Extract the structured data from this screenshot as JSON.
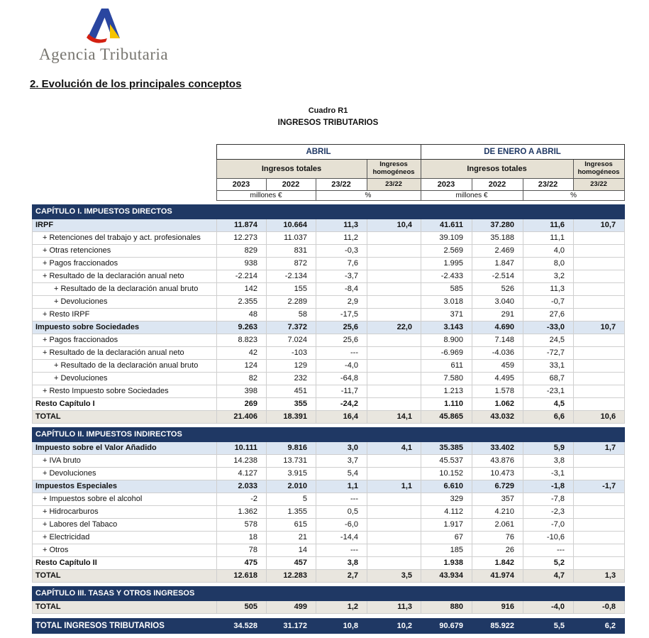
{
  "logo": {
    "text": "Agencia Tributaria"
  },
  "page_title": "2. Evolución de los principales conceptos",
  "table": {
    "title1": "Cuadro R1",
    "title2": "INGRESOS TRIBUTARIOS",
    "header": {
      "april": "ABRIL",
      "enero_abril": "DE ENERO A ABRIL",
      "ingresos_totales": "Ingresos totales",
      "ingresos_homogeneos": "Ingresos homogéneos",
      "y2023": "2023",
      "y2022": "2022",
      "ratio": "23/22",
      "unit_millones": "millones €",
      "unit_pct": "%"
    },
    "sections": [
      {
        "header": "CAPÍTULO I. IMPUESTOS DIRECTOS",
        "rows": [
          {
            "label": "IRPF",
            "style": "sub",
            "values": [
              "11.874",
              "10.664",
              "11,3",
              "10,4",
              "41.611",
              "37.280",
              "11,6",
              "10,7"
            ]
          },
          {
            "label": "+ Retenciones del trabajo y act. profesionales",
            "style": "d1",
            "values": [
              "12.273",
              "11.037",
              "11,2",
              "",
              "39.109",
              "35.188",
              "11,1",
              ""
            ]
          },
          {
            "label": "+ Otras retenciones",
            "style": "d1",
            "values": [
              "829",
              "831",
              "-0,3",
              "",
              "2.569",
              "2.469",
              "4,0",
              ""
            ]
          },
          {
            "label": "+ Pagos fraccionados",
            "style": "d1",
            "values": [
              "938",
              "872",
              "7,6",
              "",
              "1.995",
              "1.847",
              "8,0",
              ""
            ]
          },
          {
            "label": "+ Resultado de la declaración anual neto",
            "style": "d1",
            "values": [
              "-2.214",
              "-2.134",
              "-3,7",
              "",
              "-2.433",
              "-2.514",
              "3,2",
              ""
            ]
          },
          {
            "label": "+ Resultado de la declaración anual bruto",
            "style": "d2",
            "values": [
              "142",
              "155",
              "-8,4",
              "",
              "585",
              "526",
              "11,3",
              ""
            ]
          },
          {
            "label": "+ Devoluciones",
            "style": "d2",
            "values": [
              "2.355",
              "2.289",
              "2,9",
              "",
              "3.018",
              "3.040",
              "-0,7",
              ""
            ]
          },
          {
            "label": "+ Resto IRPF",
            "style": "d1",
            "values": [
              "48",
              "58",
              "-17,5",
              "",
              "371",
              "291",
              "27,6",
              ""
            ]
          },
          {
            "label": "Impuesto sobre Sociedades",
            "style": "sub",
            "values": [
              "9.263",
              "7.372",
              "25,6",
              "22,0",
              "3.143",
              "4.690",
              "-33,0",
              "10,7"
            ]
          },
          {
            "label": "+ Pagos fraccionados",
            "style": "d1",
            "values": [
              "8.823",
              "7.024",
              "25,6",
              "",
              "8.900",
              "7.148",
              "24,5",
              ""
            ]
          },
          {
            "label": "+ Resultado de la declaración anual neto",
            "style": "d1",
            "values": [
              "42",
              "-103",
              "---",
              "",
              "-6.969",
              "-4.036",
              "-72,7",
              ""
            ]
          },
          {
            "label": "+ Resultado de la declaración anual bruto",
            "style": "d2",
            "values": [
              "124",
              "129",
              "-4,0",
              "",
              "611",
              "459",
              "33,1",
              ""
            ]
          },
          {
            "label": "+ Devoluciones",
            "style": "d2",
            "values": [
              "82",
              "232",
              "-64,8",
              "",
              "7.580",
              "4.495",
              "68,7",
              ""
            ]
          },
          {
            "label": "+ Resto Impuesto sobre Sociedades",
            "style": "d1",
            "values": [
              "398",
              "451",
              "-11,7",
              "",
              "1.213",
              "1.578",
              "-23,1",
              ""
            ]
          },
          {
            "label": "Resto Capítulo I",
            "style": "b",
            "values": [
              "269",
              "355",
              "-24,2",
              "",
              "1.110",
              "1.062",
              "4,5",
              ""
            ]
          },
          {
            "label": "TOTAL",
            "style": "total",
            "values": [
              "21.406",
              "18.391",
              "16,4",
              "14,1",
              "45.865",
              "43.032",
              "6,6",
              "10,6"
            ]
          }
        ]
      },
      {
        "header": "CAPÍTULO II. IMPUESTOS INDIRECTOS",
        "rows": [
          {
            "label": "Impuesto sobre el Valor Añadido",
            "style": "sub",
            "values": [
              "10.111",
              "9.816",
              "3,0",
              "4,1",
              "35.385",
              "33.402",
              "5,9",
              "1,7"
            ]
          },
          {
            "label": "+ IVA bruto",
            "style": "d1",
            "values": [
              "14.238",
              "13.731",
              "3,7",
              "",
              "45.537",
              "43.876",
              "3,8",
              ""
            ]
          },
          {
            "label": "+ Devoluciones",
            "style": "d1",
            "values": [
              "4.127",
              "3.915",
              "5,4",
              "",
              "10.152",
              "10.473",
              "-3,1",
              ""
            ]
          },
          {
            "label": "Impuestos Especiales",
            "style": "sub",
            "values": [
              "2.033",
              "2.010",
              "1,1",
              "1,1",
              "6.610",
              "6.729",
              "-1,8",
              "-1,7"
            ]
          },
          {
            "label": "+ Impuestos sobre el alcohol",
            "style": "d1",
            "values": [
              "-2",
              "5",
              "---",
              "",
              "329",
              "357",
              "-7,8",
              ""
            ]
          },
          {
            "label": "+ Hidrocarburos",
            "style": "d1",
            "values": [
              "1.362",
              "1.355",
              "0,5",
              "",
              "4.112",
              "4.210",
              "-2,3",
              ""
            ]
          },
          {
            "label": "+ Labores del Tabaco",
            "style": "d1",
            "values": [
              "578",
              "615",
              "-6,0",
              "",
              "1.917",
              "2.061",
              "-7,0",
              ""
            ]
          },
          {
            "label": "+ Electricidad",
            "style": "d1",
            "values": [
              "18",
              "21",
              "-14,4",
              "",
              "67",
              "76",
              "-10,6",
              ""
            ]
          },
          {
            "label": "+ Otros",
            "style": "d1",
            "values": [
              "78",
              "14",
              "---",
              "",
              "185",
              "26",
              "---",
              ""
            ]
          },
          {
            "label": "Resto Capítulo II",
            "style": "b",
            "values": [
              "475",
              "457",
              "3,8",
              "",
              "1.938",
              "1.842",
              "5,2",
              ""
            ]
          },
          {
            "label": "TOTAL",
            "style": "total",
            "values": [
              "12.618",
              "12.283",
              "2,7",
              "3,5",
              "43.934",
              "41.974",
              "4,7",
              "1,3"
            ]
          }
        ]
      },
      {
        "header": "CAPÍTULO III. TASAS Y OTROS INGRESOS",
        "rows": [
          {
            "label": "TOTAL",
            "style": "total",
            "values": [
              "505",
              "499",
              "1,2",
              "11,3",
              "880",
              "916",
              "-4,0",
              "-0,8"
            ]
          }
        ]
      }
    ],
    "grand_total": {
      "label": "TOTAL INGRESOS TRIBUTARIOS",
      "values": [
        "34.528",
        "31.172",
        "10,8",
        "10,2",
        "90.679",
        "85.922",
        "5,5",
        "6,2"
      ]
    }
  }
}
